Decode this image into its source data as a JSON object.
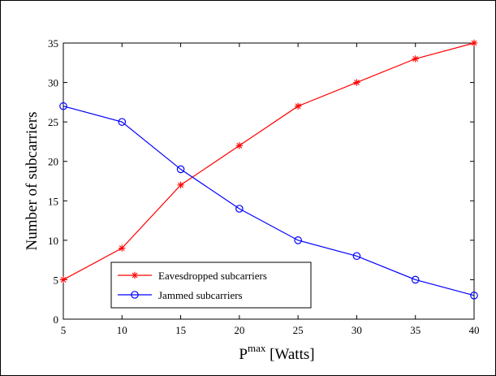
{
  "chart_data": {
    "type": "line",
    "title": "",
    "xlabel": "P",
    "xlabel_sup": "max",
    "xlabel_suffix": " [Watts]",
    "ylabel": "Number of subcarriers",
    "x": [
      5,
      10,
      15,
      20,
      25,
      30,
      35,
      40
    ],
    "xlim": [
      5,
      40
    ],
    "ylim": [
      0,
      35
    ],
    "xticks": [
      "5",
      "10",
      "15",
      "20",
      "25",
      "30",
      "35",
      "40"
    ],
    "yticks": [
      "0",
      "5",
      "10",
      "15",
      "20",
      "25",
      "30",
      "35"
    ],
    "grid": false,
    "legend_position": "bottom-left",
    "series": [
      {
        "name": "Eavesdropped subcarriers",
        "color": "#ff0000",
        "marker": "asterisk",
        "values": [
          5,
          9,
          17,
          22,
          27,
          30,
          33,
          35
        ]
      },
      {
        "name": "Jammed subcarriers",
        "color": "#0000ff",
        "marker": "circle",
        "values": [
          27,
          25,
          19,
          14,
          10,
          8,
          5,
          3
        ]
      }
    ]
  }
}
